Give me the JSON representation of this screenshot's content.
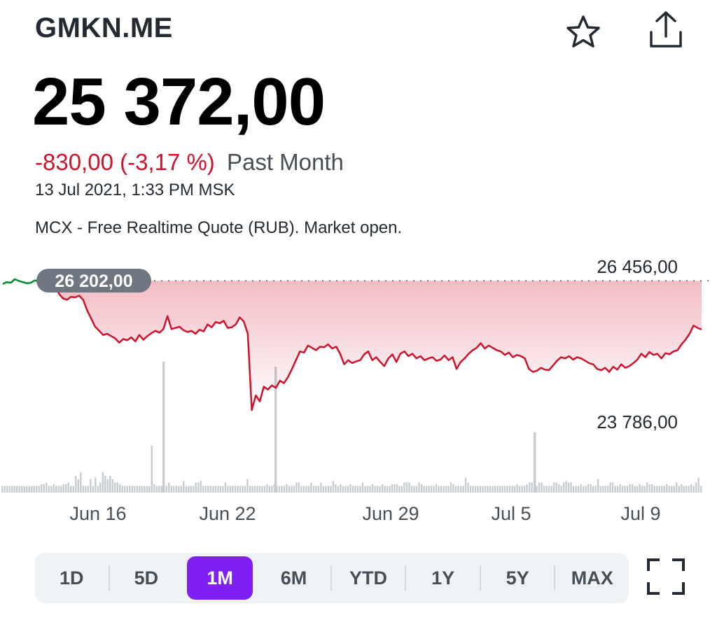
{
  "header": {
    "ticker": "GMKN.ME",
    "favorite_icon": "star-outline-icon",
    "share_icon": "share-upload-icon"
  },
  "quote": {
    "price": "25 372,00",
    "change": "-830,00 (-3,17 %)",
    "period": "Past Month",
    "timestamp": "13 Jul 2021, 1:33 PM MSK",
    "source": "MCX - Free Realtime Quote (RUB). Market open."
  },
  "colors": {
    "down": "#d0112b",
    "up": "#008a2b",
    "accent": "#7e1ff5",
    "volume": "#c7ccd3",
    "badge": "#6e7780"
  },
  "chart_data": {
    "type": "line",
    "series": [
      {
        "values": [
          26150,
          26180,
          26170,
          26230,
          26200,
          26180,
          26160,
          26170,
          26210,
          26190,
          26250,
          26202,
          26030,
          26100,
          25980,
          25900,
          25880,
          25930,
          25920,
          25950,
          25880,
          25700,
          25560,
          25420,
          25350,
          25280,
          25300,
          25260,
          25220,
          25150,
          25210,
          25190,
          25240,
          25170,
          25280,
          25200,
          25260,
          25310,
          25350,
          25320,
          25380,
          25600,
          25380,
          25400,
          25420,
          25360,
          25330,
          25350,
          25300,
          25370,
          25340,
          25460,
          25410,
          25500,
          25480,
          25520,
          25400,
          25410,
          25460,
          25580,
          25510,
          25300,
          24000,
          24250,
          24150,
          24400,
          24350,
          24420,
          24380,
          24500,
          24460,
          24560,
          24700,
          24850,
          25000,
          24980,
          25100,
          25060,
          25020,
          25080,
          25070,
          25120,
          25050,
          25080,
          24960,
          24780,
          24850,
          24800,
          24830,
          24850,
          24950,
          25000,
          24850,
          24900,
          24820,
          24750,
          24880,
          24950,
          24820,
          24960,
          25000,
          24920,
          24960,
          24880,
          24920,
          24850,
          24880,
          24900,
          24840,
          24860,
          24930,
          24850,
          24900,
          24700,
          24820,
          24880,
          24960,
          25020,
          25060,
          25140,
          25050,
          25100,
          25060,
          25020,
          25000,
          24940,
          24980,
          24900,
          24940,
          24920,
          24880,
          24700,
          24650,
          24670,
          24720,
          24690,
          24680,
          24760,
          24840,
          24900,
          24880,
          24920,
          24860,
          24900,
          24880,
          24840,
          24800,
          24780,
          24700,
          24680,
          24720,
          24650,
          24740,
          24690,
          24780,
          24720,
          24750,
          24800,
          24860,
          24960,
          24900,
          24990,
          24940,
          24960,
          24880,
          24970,
          24950,
          25000,
          25020,
          25120,
          25200,
          25300,
          25440,
          25400,
          25372
        ]
      }
    ],
    "reference_line": {
      "value": 26202,
      "label": "26 202,00",
      "style": "dotted"
    },
    "y_labels": [
      "26 456,00",
      "23 786,00"
    ],
    "ylim": [
      23786,
      26456
    ],
    "x_ticks": [
      "Jun 16",
      "Jun 22",
      "Jun 29",
      "Jul 5",
      "Jul 9"
    ],
    "volume_values": [
      4,
      4,
      4,
      4,
      4,
      4,
      4,
      4,
      4,
      4,
      4,
      4,
      4,
      4,
      4,
      4,
      5,
      5,
      6,
      4,
      4,
      5,
      4,
      4,
      4,
      5,
      5,
      6,
      4,
      4,
      10,
      8,
      12,
      4,
      4,
      4,
      8,
      4,
      9,
      4,
      6,
      12,
      10,
      8,
      10,
      8,
      6,
      6,
      5,
      4,
      4,
      4,
      4,
      4,
      4,
      4,
      4,
      4,
      4,
      4,
      4,
      28,
      5,
      4,
      4,
      4,
      4,
      4,
      6,
      4,
      4,
      4,
      4,
      4,
      7,
      4,
      4,
      4,
      4,
      6,
      6,
      7,
      4,
      4,
      4,
      4,
      4,
      4,
      4,
      4,
      4,
      6,
      4,
      4,
      4,
      4,
      4,
      4,
      4,
      4,
      8,
      4,
      4,
      4,
      4,
      4,
      4,
      4,
      5,
      4,
      4,
      5,
      4,
      4,
      4,
      4,
      5,
      4,
      4,
      4,
      6,
      6,
      4,
      4,
      4,
      4,
      6,
      4,
      4,
      4,
      6,
      4,
      4,
      4,
      4,
      7,
      5,
      4,
      5,
      4,
      4,
      4,
      5,
      4,
      4,
      4,
      4,
      6,
      4,
      4,
      4,
      5,
      4,
      4,
      4,
      5,
      4,
      4,
      4,
      5,
      5,
      5,
      4,
      4,
      6,
      6,
      6,
      4,
      4,
      4,
      6,
      5,
      4,
      4,
      4,
      4,
      4,
      5,
      4,
      4,
      4,
      4,
      4,
      6,
      5,
      4,
      4,
      4,
      4,
      9,
      6,
      4,
      4,
      4,
      4,
      4,
      4,
      4,
      4,
      4,
      4,
      4,
      4,
      4,
      4,
      4,
      4,
      4,
      4,
      4,
      5,
      4,
      4,
      4,
      5,
      6,
      6,
      4,
      4,
      6,
      6,
      4,
      4,
      4,
      4,
      6,
      6,
      5,
      4,
      6,
      7,
      6,
      6,
      4,
      4,
      4,
      5,
      4,
      4,
      5,
      5,
      4,
      4,
      8,
      4,
      4,
      4,
      4,
      6,
      6,
      4,
      4,
      5,
      4,
      4,
      4,
      5,
      5,
      4,
      4,
      5,
      4,
      4,
      6,
      5,
      5,
      4,
      4,
      4,
      4,
      4,
      5,
      4,
      4,
      4,
      6,
      4,
      5,
      4,
      4,
      4,
      5,
      4,
      6,
      9,
      4
    ],
    "volume_big_bars": [
      {
        "position": 0.23,
        "value": 26
      },
      {
        "position": 0.39,
        "value": 25
      },
      {
        "position": 0.76,
        "value": 12
      }
    ]
  },
  "range_tabs": [
    {
      "label": "1D",
      "active": false
    },
    {
      "label": "5D",
      "active": false
    },
    {
      "label": "1M",
      "active": true
    },
    {
      "label": "6M",
      "active": false
    },
    {
      "label": "YTD",
      "active": false
    },
    {
      "label": "1Y",
      "active": false
    },
    {
      "label": "5Y",
      "active": false
    },
    {
      "label": "MAX",
      "active": false
    }
  ],
  "fullscreen_icon": "fullscreen-expand-icon"
}
